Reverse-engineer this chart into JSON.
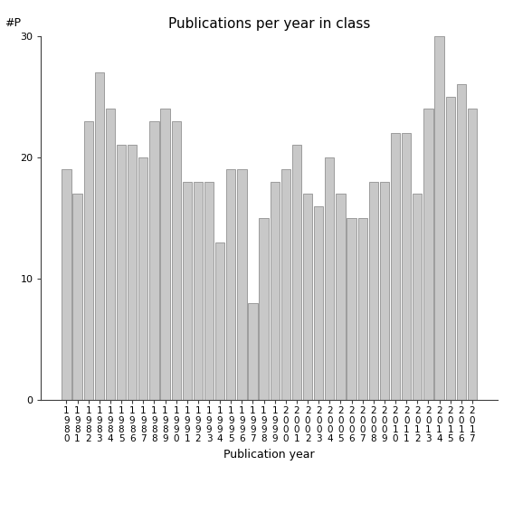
{
  "title": "Publications per year in class",
  "xlabel": "Publication year",
  "ylabel": "#P",
  "bar_color": "#c8c8c8",
  "bar_edgecolor": "#808080",
  "categories": [
    "1980",
    "1981",
    "1982",
    "1983",
    "1984",
    "1985",
    "1986",
    "1987",
    "1988",
    "1989",
    "1990",
    "1991",
    "1992",
    "1993",
    "1994",
    "1995",
    "1996",
    "1997",
    "1998",
    "1999",
    "2000",
    "2001",
    "2002",
    "2003",
    "2004",
    "2005",
    "2006",
    "2007",
    "2008",
    "2009",
    "2010",
    "2011",
    "2012",
    "2013",
    "2014",
    "2015",
    "2016",
    "2017"
  ],
  "values": [
    19,
    17,
    23,
    27,
    24,
    21,
    21,
    20,
    23,
    24,
    23,
    18,
    18,
    18,
    13,
    19,
    19,
    8,
    15,
    18,
    19,
    21,
    17,
    16,
    20,
    17,
    15,
    15,
    18,
    18,
    22,
    22,
    17,
    24,
    30,
    25,
    26,
    24
  ],
  "ylim": [
    0,
    30
  ],
  "yticks": [
    0,
    10,
    20,
    30
  ],
  "background_color": "#ffffff",
  "title_fontsize": 11,
  "axis_fontsize": 9,
  "tick_label_fontsize": 7.5
}
